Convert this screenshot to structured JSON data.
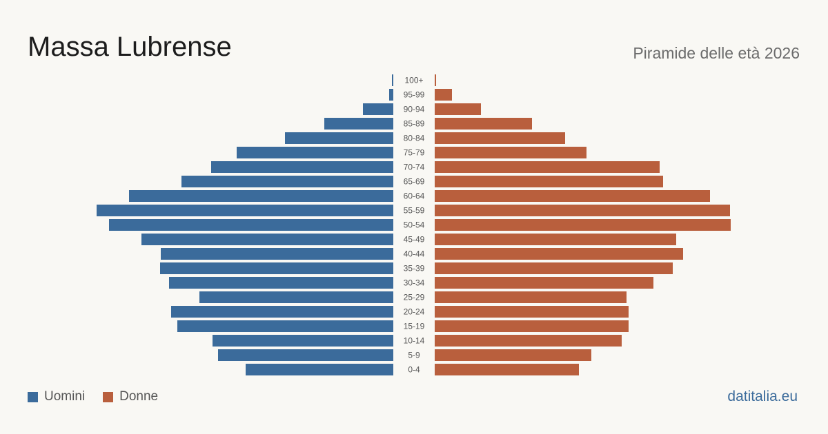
{
  "header": {
    "title": "Massa Lubrense",
    "subtitle": "Piramide delle età 2026"
  },
  "legend": {
    "men": "Uomini",
    "women": "Donne"
  },
  "footer": {
    "brand": "datitalia.eu"
  },
  "colors": {
    "men": "#3b6b9b",
    "women": "#b95f3d",
    "background": "#f9f8f4",
    "age_label": "#555555"
  },
  "chart_data": {
    "type": "bar",
    "orientation": "horizontal-pyramid",
    "categories": [
      "100+",
      "95-99",
      "90-94",
      "85-89",
      "80-84",
      "75-79",
      "70-74",
      "65-69",
      "60-64",
      "55-59",
      "50-54",
      "45-49",
      "40-44",
      "35-39",
      "30-34",
      "25-29",
      "20-24",
      "15-19",
      "10-14",
      "5-9",
      "0-4"
    ],
    "series": [
      {
        "name": "Uomini",
        "values": [
          2,
          6,
          44,
          100,
          157,
          227,
          264,
          307,
          383,
          430,
          412,
          365,
          337,
          338,
          325,
          281,
          322,
          313,
          262,
          254,
          214
        ]
      },
      {
        "name": "Donne",
        "values": [
          2,
          25,
          67,
          141,
          189,
          220,
          326,
          331,
          399,
          428,
          429,
          350,
          360,
          345,
          317,
          278,
          281,
          281,
          271,
          227,
          209
        ]
      }
    ],
    "xlim": [
      0,
      430
    ],
    "grid": false,
    "legend_position": "bottom-left"
  }
}
